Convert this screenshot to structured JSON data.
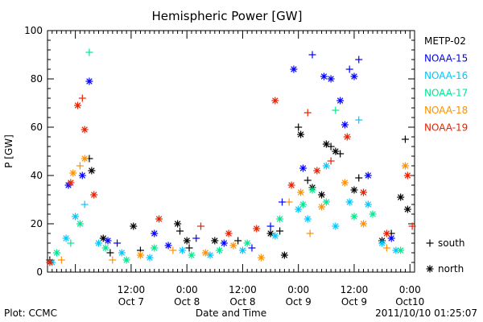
{
  "chart_data": {
    "type": "scatter",
    "title": "Hemispheric Power [GW]",
    "ylabel": "P [GW]",
    "xlabel": "Date and Time",
    "ylim": [
      0,
      100
    ],
    "xlim": [
      "2011-10-06 18:00",
      "2011-10-10 01:00"
    ],
    "y_ticks": [
      "0",
      "20",
      "40",
      "60",
      "80",
      "100"
    ],
    "x_ticks": [
      {
        "time": "2011-10-07 12:00",
        "line1": "12:00",
        "line2": "Oct 7"
      },
      {
        "time": "2011-10-08 00:00",
        "line1": "0:00",
        "line2": "Oct 8"
      },
      {
        "time": "2011-10-08 12:00",
        "line1": "12:00",
        "line2": "Oct 8"
      },
      {
        "time": "2011-10-09 00:00",
        "line1": "0:00",
        "line2": "Oct 9"
      },
      {
        "time": "2011-10-09 12:00",
        "line1": "12:00",
        "line2": "Oct 9"
      },
      {
        "time": "2011-10-10 00:00",
        "line1": "0:00",
        "line2": "Oct10"
      }
    ],
    "markers_legend": [
      {
        "symbol": "+",
        "label": "south"
      },
      {
        "symbol": "*",
        "label": "north"
      }
    ],
    "series": [
      {
        "name": "METP-02",
        "color": "#000000",
        "points": [
          [
            "2011-10-06 18:30",
            5,
            "+"
          ],
          [
            "2011-10-07 03:00",
            47,
            "+"
          ],
          [
            "2011-10-07 03:30",
            42,
            "*"
          ],
          [
            "2011-10-07 06:00",
            14,
            "*"
          ],
          [
            "2011-10-07 07:30",
            8,
            "+"
          ],
          [
            "2011-10-07 12:30",
            19,
            "*"
          ],
          [
            "2011-10-07 14:00",
            9,
            "+"
          ],
          [
            "2011-10-07 22:00",
            20,
            "*"
          ],
          [
            "2011-10-07 22:30",
            17,
            "+"
          ],
          [
            "2011-10-08 00:00",
            13,
            "*"
          ],
          [
            "2011-10-08 00:30",
            10,
            "+"
          ],
          [
            "2011-10-08 06:00",
            13,
            "*"
          ],
          [
            "2011-10-08 11:00",
            13,
            "+"
          ],
          [
            "2011-10-08 18:00",
            16,
            "*"
          ],
          [
            "2011-10-08 20:00",
            17,
            "+"
          ],
          [
            "2011-10-08 21:00",
            7,
            "*"
          ],
          [
            "2011-10-09 00:00",
            60,
            "+"
          ],
          [
            "2011-10-09 00:30",
            57,
            "*"
          ],
          [
            "2011-10-09 02:00",
            38,
            "+"
          ],
          [
            "2011-10-09 03:00",
            35,
            "*"
          ],
          [
            "2011-10-09 05:00",
            32,
            "*"
          ],
          [
            "2011-10-09 06:00",
            53,
            "*"
          ],
          [
            "2011-10-09 07:00",
            52,
            "+"
          ],
          [
            "2011-10-09 08:00",
            50,
            "*"
          ],
          [
            "2011-10-09 09:00",
            49,
            "+"
          ],
          [
            "2011-10-09 12:00",
            34,
            "*"
          ],
          [
            "2011-10-09 13:00",
            39,
            "+"
          ],
          [
            "2011-10-09 18:00",
            13,
            "*"
          ],
          [
            "2011-10-09 20:00",
            16,
            "+"
          ],
          [
            "2011-10-09 22:00",
            31,
            "*"
          ],
          [
            "2011-10-09 23:00",
            55,
            "+"
          ],
          [
            "2011-10-09 23:30",
            26,
            "*"
          ]
        ]
      },
      {
        "name": "NOAA-15",
        "color": "#0000ff",
        "points": [
          [
            "2011-10-06 22:30",
            36,
            "*"
          ],
          [
            "2011-10-07 01:30",
            40,
            "*"
          ],
          [
            "2011-10-07 03:00",
            79,
            "*"
          ],
          [
            "2011-10-07 07:00",
            13,
            "*"
          ],
          [
            "2011-10-07 09:00",
            12,
            "+"
          ],
          [
            "2011-10-07 17:00",
            16,
            "*"
          ],
          [
            "2011-10-07 20:00",
            11,
            "*"
          ],
          [
            "2011-10-08 02:00",
            14,
            "+"
          ],
          [
            "2011-10-08 08:00",
            12,
            "*"
          ],
          [
            "2011-10-08 14:00",
            10,
            "+"
          ],
          [
            "2011-10-08 18:00",
            19,
            "+"
          ],
          [
            "2011-10-08 20:30",
            29,
            "+"
          ],
          [
            "2011-10-08 23:00",
            84,
            "*"
          ],
          [
            "2011-10-09 01:00",
            43,
            "*"
          ],
          [
            "2011-10-09 03:00",
            90,
            "+"
          ],
          [
            "2011-10-09 05:30",
            81,
            "*"
          ],
          [
            "2011-10-09 07:00",
            80,
            "*"
          ],
          [
            "2011-10-09 09:00",
            71,
            "*"
          ],
          [
            "2011-10-09 10:00",
            61,
            "*"
          ],
          [
            "2011-10-09 11:00",
            84,
            "+"
          ],
          [
            "2011-10-09 12:00",
            81,
            "*"
          ],
          [
            "2011-10-09 13:00",
            88,
            "+"
          ],
          [
            "2011-10-09 15:00",
            40,
            "*"
          ],
          [
            "2011-10-09 20:00",
            14,
            "*"
          ]
        ]
      },
      {
        "name": "NOAA-16",
        "color": "#00c8ff",
        "points": [
          [
            "2011-10-06 19:00",
            4,
            "*"
          ],
          [
            "2011-10-06 22:00",
            14,
            "*"
          ],
          [
            "2011-10-07 00:00",
            23,
            "*"
          ],
          [
            "2011-10-07 02:00",
            28,
            "+"
          ],
          [
            "2011-10-07 05:00",
            12,
            "*"
          ],
          [
            "2011-10-07 10:00",
            8,
            "*"
          ],
          [
            "2011-10-07 16:00",
            6,
            "*"
          ],
          [
            "2011-10-07 23:00",
            9,
            "*"
          ],
          [
            "2011-10-08 05:00",
            7,
            "*"
          ],
          [
            "2011-10-08 12:00",
            9,
            "*"
          ],
          [
            "2011-10-08 19:00",
            15,
            "*"
          ],
          [
            "2011-10-09 00:00",
            26,
            "*"
          ],
          [
            "2011-10-09 02:00",
            22,
            "*"
          ],
          [
            "2011-10-09 06:00",
            44,
            "*"
          ],
          [
            "2011-10-09 08:00",
            19,
            "*"
          ],
          [
            "2011-10-09 11:00",
            29,
            "*"
          ],
          [
            "2011-10-09 13:00",
            63,
            "+"
          ],
          [
            "2011-10-09 15:00",
            28,
            "*"
          ],
          [
            "2011-10-09 18:00",
            12,
            "*"
          ],
          [
            "2011-10-09 21:00",
            9,
            "*"
          ]
        ]
      },
      {
        "name": "NOAA-17",
        "color": "#00e890",
        "points": [
          [
            "2011-10-06 20:00",
            8,
            "*"
          ],
          [
            "2011-10-06 23:00",
            12,
            "+"
          ],
          [
            "2011-10-07 01:00",
            20,
            "*"
          ],
          [
            "2011-10-07 03:00",
            91,
            "+"
          ],
          [
            "2011-10-07 06:30",
            10,
            "*"
          ],
          [
            "2011-10-07 11:00",
            5,
            "*"
          ],
          [
            "2011-10-07 17:00",
            10,
            "*"
          ],
          [
            "2011-10-08 01:00",
            7,
            "*"
          ],
          [
            "2011-10-08 07:00",
            9,
            "*"
          ],
          [
            "2011-10-08 13:00",
            12,
            "*"
          ],
          [
            "2011-10-08 20:00",
            22,
            "*"
          ],
          [
            "2011-10-09 01:00",
            28,
            "*"
          ],
          [
            "2011-10-09 03:00",
            34,
            "*"
          ],
          [
            "2011-10-09 06:00",
            29,
            "*"
          ],
          [
            "2011-10-09 08:00",
            67,
            "+"
          ],
          [
            "2011-10-09 12:00",
            23,
            "*"
          ],
          [
            "2011-10-09 16:00",
            24,
            "*"
          ],
          [
            "2011-10-09 22:00",
            9,
            "*"
          ]
        ]
      },
      {
        "name": "NOAA-18",
        "color": "#ff9000",
        "points": [
          [
            "2011-10-06 21:00",
            5,
            "+"
          ],
          [
            "2011-10-06 23:30",
            41,
            "*"
          ],
          [
            "2011-10-07 01:00",
            44,
            "+"
          ],
          [
            "2011-10-07 02:00",
            47,
            "*"
          ],
          [
            "2011-10-07 08:00",
            5,
            "+"
          ],
          [
            "2011-10-07 14:00",
            7,
            "*"
          ],
          [
            "2011-10-07 21:00",
            9,
            "+"
          ],
          [
            "2011-10-08 04:00",
            8,
            "*"
          ],
          [
            "2011-10-08 10:00",
            11,
            "*"
          ],
          [
            "2011-10-08 16:00",
            6,
            "*"
          ],
          [
            "2011-10-08 22:00",
            29,
            "+"
          ],
          [
            "2011-10-09 00:30",
            33,
            "*"
          ],
          [
            "2011-10-09 02:30",
            16,
            "+"
          ],
          [
            "2011-10-09 05:00",
            27,
            "*"
          ],
          [
            "2011-10-09 10:00",
            37,
            "*"
          ],
          [
            "2011-10-09 14:00",
            20,
            "*"
          ],
          [
            "2011-10-09 19:00",
            10,
            "+"
          ],
          [
            "2011-10-09 23:00",
            44,
            "*"
          ]
        ]
      },
      {
        "name": "NOAA-19",
        "color": "#e82000",
        "points": [
          [
            "2011-10-06 18:30",
            4,
            "*"
          ],
          [
            "2011-10-06 23:00",
            37,
            "*"
          ],
          [
            "2011-10-07 00:30",
            69,
            "*"
          ],
          [
            "2011-10-07 01:30",
            72,
            "+"
          ],
          [
            "2011-10-07 02:00",
            59,
            "*"
          ],
          [
            "2011-10-07 04:00",
            32,
            "*"
          ],
          [
            "2011-10-07 18:00",
            22,
            "*"
          ],
          [
            "2011-10-08 03:00",
            19,
            "+"
          ],
          [
            "2011-10-08 09:00",
            16,
            "*"
          ],
          [
            "2011-10-08 15:00",
            18,
            "*"
          ],
          [
            "2011-10-08 19:00",
            71,
            "*"
          ],
          [
            "2011-10-08 22:30",
            36,
            "*"
          ],
          [
            "2011-10-09 02:00",
            66,
            "+"
          ],
          [
            "2011-10-09 04:00",
            42,
            "*"
          ],
          [
            "2011-10-09 07:00",
            46,
            "+"
          ],
          [
            "2011-10-09 10:30",
            56,
            "*"
          ],
          [
            "2011-10-09 14:00",
            33,
            "*"
          ],
          [
            "2011-10-09 19:00",
            16,
            "*"
          ],
          [
            "2011-10-09 23:30",
            40,
            "*"
          ],
          [
            "2011-10-10 00:30",
            19,
            "+"
          ]
        ]
      }
    ]
  },
  "footer": {
    "plot_credit": "Plot: CCMC",
    "timestamp": "2011/10/10 01:25:07"
  }
}
